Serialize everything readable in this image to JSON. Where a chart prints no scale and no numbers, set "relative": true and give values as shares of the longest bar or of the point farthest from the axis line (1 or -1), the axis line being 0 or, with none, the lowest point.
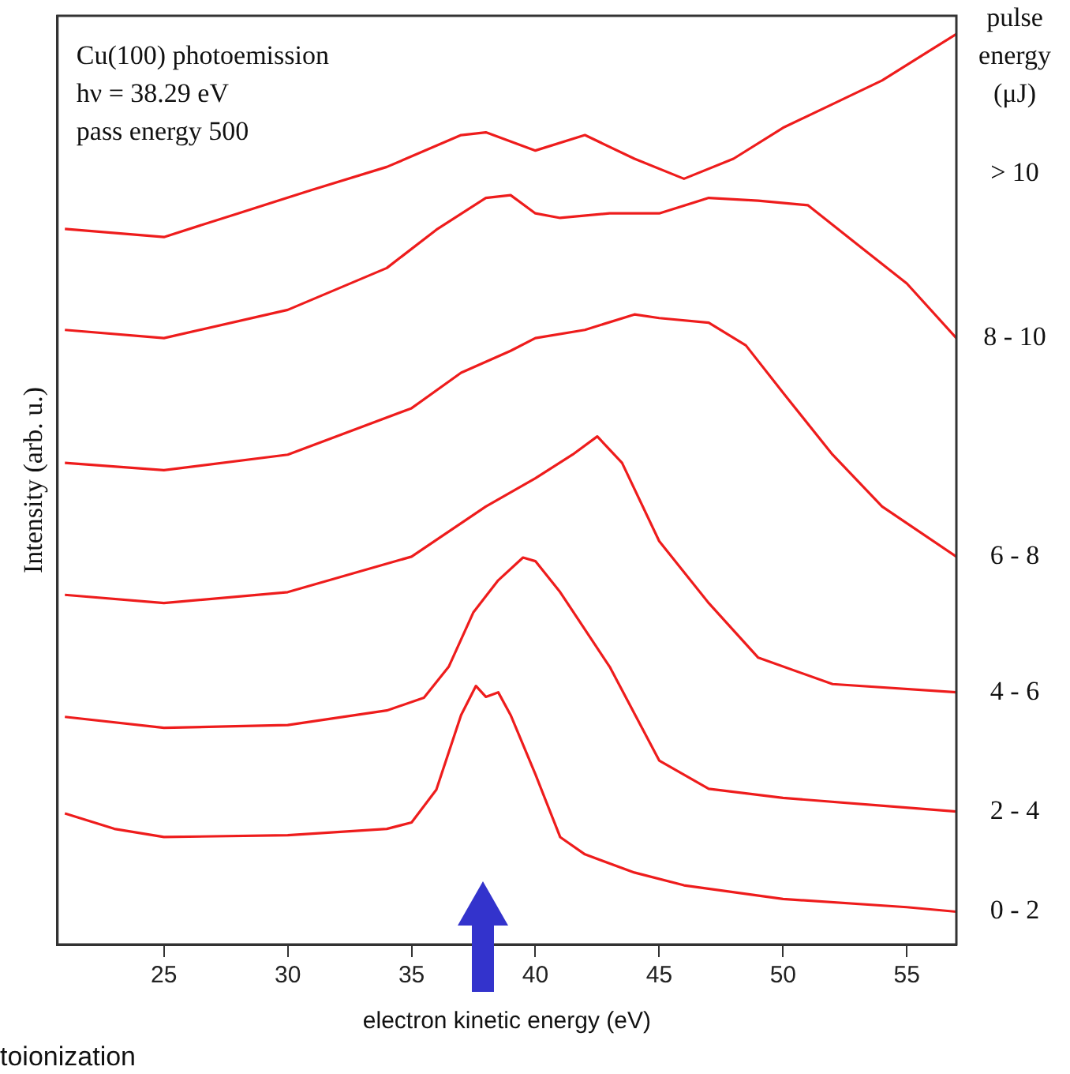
{
  "chart_data": {
    "type": "line",
    "xlabel": "electron kinetic energy (eV)",
    "ylabel": "Intensity (arb. u.)",
    "legend_title": "pulse energy (μJ)",
    "annotations": [
      "Cu(100) photoemission",
      "hν = 38.29 eV",
      "pass energy 500",
      "toionization"
    ],
    "relative": true,
    "xlim": [
      20.7,
      57
    ],
    "xticks": [
      25,
      30,
      35,
      40,
      45,
      50,
      55
    ],
    "grid": false,
    "legend": false,
    "marker": "none",
    "line_style": "solid",
    "series": [
      {
        "name": "0 - 2",
        "color": "#ee1c1c",
        "x": [
          21,
          23,
          25,
          30,
          34,
          35,
          36,
          37,
          37.6,
          38,
          38.5,
          39,
          40,
          41,
          42,
          44,
          46,
          50,
          55,
          57
        ],
        "values": [
          0.144,
          0.127,
          0.118,
          0.12,
          0.127,
          0.134,
          0.17,
          0.252,
          0.284,
          0.272,
          0.277,
          0.252,
          0.187,
          0.118,
          0.099,
          0.079,
          0.065,
          0.05,
          0.041,
          0.036
        ]
      },
      {
        "name": "2 - 4",
        "color": "#ee1c1c",
        "x": [
          21,
          25,
          30,
          34,
          35.5,
          36.5,
          37.5,
          38.5,
          39.5,
          40,
          41,
          43,
          45,
          47,
          50,
          57
        ],
        "values": [
          0.25,
          0.238,
          0.241,
          0.257,
          0.271,
          0.305,
          0.365,
          0.4,
          0.425,
          0.421,
          0.387,
          0.305,
          0.202,
          0.171,
          0.161,
          0.146
        ]
      },
      {
        "name": "4 - 6",
        "color": "#ee1c1c",
        "x": [
          21,
          25,
          30,
          35,
          38,
          40,
          41.5,
          42.5,
          43.5,
          45,
          47,
          49,
          52,
          57
        ],
        "values": [
          0.384,
          0.375,
          0.387,
          0.426,
          0.481,
          0.512,
          0.538,
          0.558,
          0.529,
          0.443,
          0.375,
          0.315,
          0.286,
          0.277
        ]
      },
      {
        "name": "6 - 8",
        "color": "#ee1c1c",
        "x": [
          21,
          25,
          30,
          35,
          37,
          39,
          40,
          42,
          44,
          45,
          47,
          48.5,
          50,
          52,
          54,
          57
        ],
        "values": [
          0.529,
          0.521,
          0.538,
          0.589,
          0.628,
          0.652,
          0.666,
          0.675,
          0.692,
          0.688,
          0.683,
          0.658,
          0.606,
          0.538,
          0.481,
          0.426
        ]
      },
      {
        "name": "8 - 10",
        "color": "#ee1c1c",
        "x": [
          21,
          25,
          30,
          34,
          36,
          38,
          39,
          40,
          41,
          43,
          45,
          47,
          49,
          51,
          53,
          55,
          57
        ],
        "values": [
          0.675,
          0.666,
          0.697,
          0.743,
          0.785,
          0.82,
          0.823,
          0.803,
          0.798,
          0.803,
          0.803,
          0.82,
          0.817,
          0.812,
          0.769,
          0.726,
          0.666
        ]
      },
      {
        "name": "> 10",
        "color": "#ee1c1c",
        "x": [
          21,
          25,
          28,
          31,
          34,
          37,
          38,
          40,
          42,
          44,
          46,
          48,
          50,
          52,
          54,
          56,
          57
        ],
        "values": [
          0.786,
          0.777,
          0.803,
          0.829,
          0.854,
          0.889,
          0.892,
          0.872,
          0.889,
          0.863,
          0.841,
          0.863,
          0.897,
          0.923,
          0.949,
          0.983,
          1
        ]
      }
    ]
  }
}
